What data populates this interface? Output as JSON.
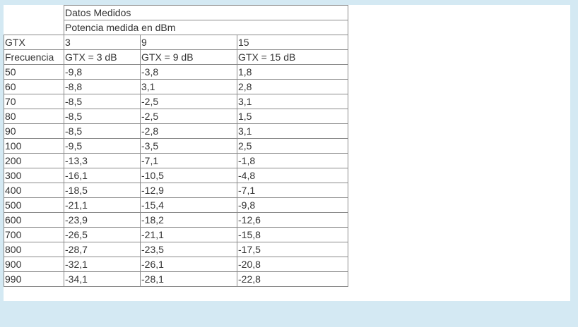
{
  "header": {
    "group_title": "Datos Medidos",
    "subtitle": "Potencia medida en dBm"
  },
  "gtx_row": {
    "label": "GTX",
    "values": [
      "3",
      "9",
      "15"
    ]
  },
  "column_headers": [
    "Frecuencia",
    "GTX = 3 dB",
    "GTX = 9 dB",
    "GTX = 15 dB"
  ],
  "rows": [
    [
      "50",
      "-9,8",
      "-3,8",
      "1,8"
    ],
    [
      "60",
      "-8,8",
      "3,1",
      "2,8"
    ],
    [
      "70",
      "-8,5",
      "-2,5",
      "3,1"
    ],
    [
      "80",
      "-8,5",
      "-2,5",
      "1,5"
    ],
    [
      "90",
      "-8,5",
      "-2,8",
      "3,1"
    ],
    [
      "100",
      "-9,5",
      "-3,5",
      "2,5"
    ],
    [
      "200",
      "-13,3",
      "-7,1",
      "-1,8"
    ],
    [
      "300",
      "-16,1",
      "-10,5",
      "-4,8"
    ],
    [
      "400",
      "-18,5",
      "-12,9",
      "-7,1"
    ],
    [
      "500",
      "-21,1",
      "-15,4",
      "-9,8"
    ],
    [
      "600",
      "-23,9",
      "-18,2",
      "-12,6"
    ],
    [
      "700",
      "-26,5",
      "-21,1",
      "-15,8"
    ],
    [
      "800",
      "-28,7",
      "-23,5",
      "-17,5"
    ],
    [
      "900",
      "-32,1",
      "-26,1",
      "-20,8"
    ],
    [
      "990",
      "-34,1",
      "-28,1",
      "-22,8"
    ]
  ],
  "colors": {
    "page_background": "#d4e9f3",
    "panel_background": "#ffffff",
    "border": "#8a8a8a",
    "text": "#333333"
  }
}
